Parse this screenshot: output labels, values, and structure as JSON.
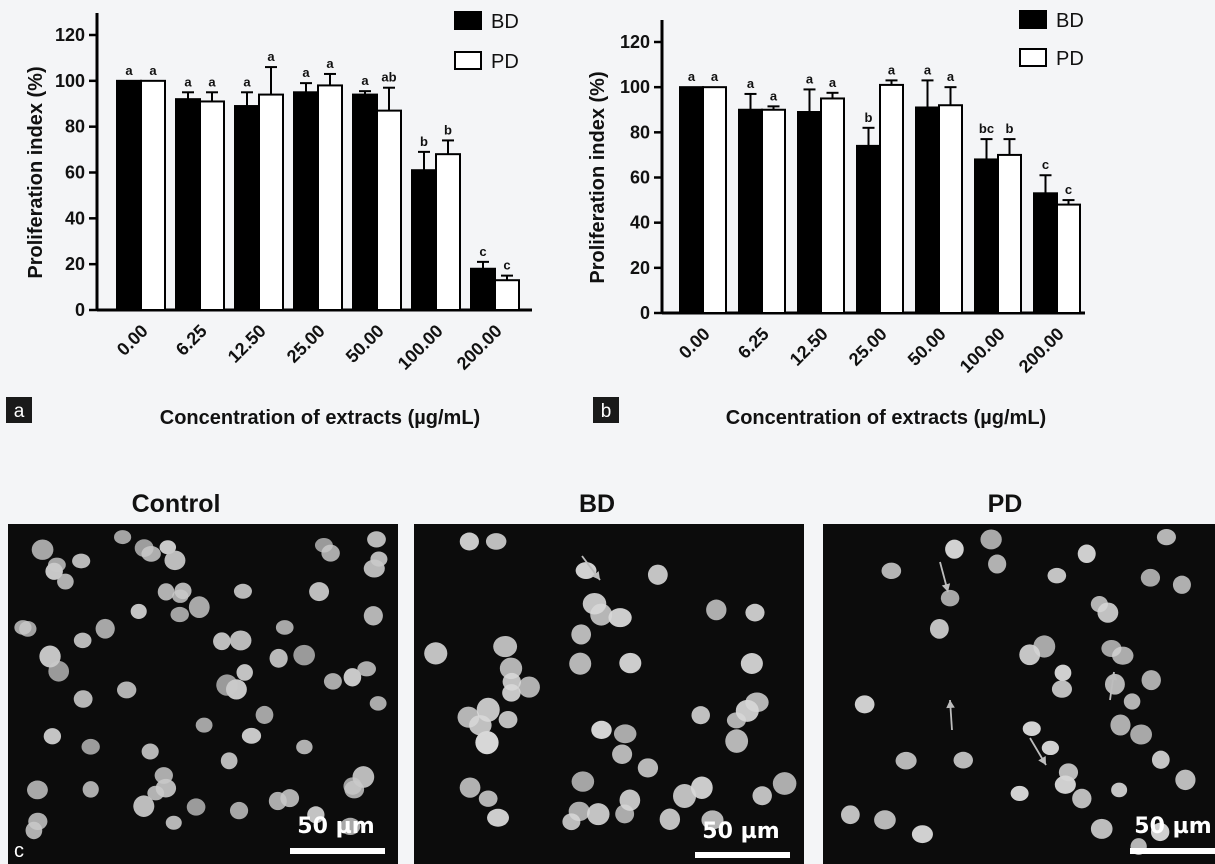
{
  "chart_data": [
    {
      "type": "bar",
      "panel_label": "a",
      "categories": [
        "0.00",
        "6.25",
        "12.50",
        "25.00",
        "50.00",
        "100.00",
        "200.00"
      ],
      "series": [
        {
          "name": "BD",
          "color": "#000000",
          "values": [
            100,
            92,
            89,
            95,
            94,
            61,
            18
          ],
          "errors": [
            0,
            3,
            6,
            4,
            1.5,
            8,
            3
          ],
          "letters": [
            "a",
            "a",
            "a",
            "a",
            "a",
            "b",
            "c"
          ]
        },
        {
          "name": "PD",
          "color": "#ffffff",
          "values": [
            100,
            91,
            94,
            98,
            87,
            68,
            13
          ],
          "errors": [
            0,
            4,
            12,
            5,
            10,
            6,
            2
          ],
          "letters": [
            "a",
            "a",
            "a",
            "a",
            "ab",
            "b",
            "c"
          ]
        }
      ],
      "ylabel": "Proliferation index (%)",
      "xlabel": "Concentration of extracts (µg/mL)",
      "ylim": [
        0,
        120
      ],
      "yticks": [
        0,
        20,
        40,
        60,
        80,
        100,
        120
      ],
      "legend": "top-right",
      "grid": false
    },
    {
      "type": "bar",
      "panel_label": "b",
      "categories": [
        "0.00",
        "6.25",
        "12.50",
        "25.00",
        "50.00",
        "100.00",
        "200.00"
      ],
      "series": [
        {
          "name": "BD",
          "color": "#000000",
          "values": [
            100,
            90,
            89,
            74,
            91,
            68,
            53
          ],
          "errors": [
            0,
            7,
            10,
            8,
            12,
            9,
            8
          ],
          "letters": [
            "a",
            "a",
            "a",
            "b",
            "a",
            "bc",
            "c"
          ]
        },
        {
          "name": "PD",
          "color": "#ffffff",
          "values": [
            100,
            90,
            95,
            101,
            92,
            70,
            48
          ],
          "errors": [
            0,
            1.5,
            2.5,
            2,
            8,
            7,
            2
          ],
          "letters": [
            "a",
            "a",
            "a",
            "a",
            "a",
            "b",
            "c"
          ]
        }
      ],
      "ylabel": "Proliferation index (%)",
      "xlabel": "Concentration of extracts (µg/mL)",
      "ylim": [
        0,
        120
      ],
      "yticks": [
        0,
        20,
        40,
        60,
        80,
        100,
        120
      ],
      "legend": "top-right",
      "grid": false
    }
  ],
  "micrographs": {
    "panel_label": "c",
    "panels": [
      {
        "title": "Control",
        "scale_bar": "50 µm"
      },
      {
        "title": "BD",
        "scale_bar": "50 µm"
      },
      {
        "title": "PD",
        "scale_bar": "50 µm"
      }
    ]
  }
}
